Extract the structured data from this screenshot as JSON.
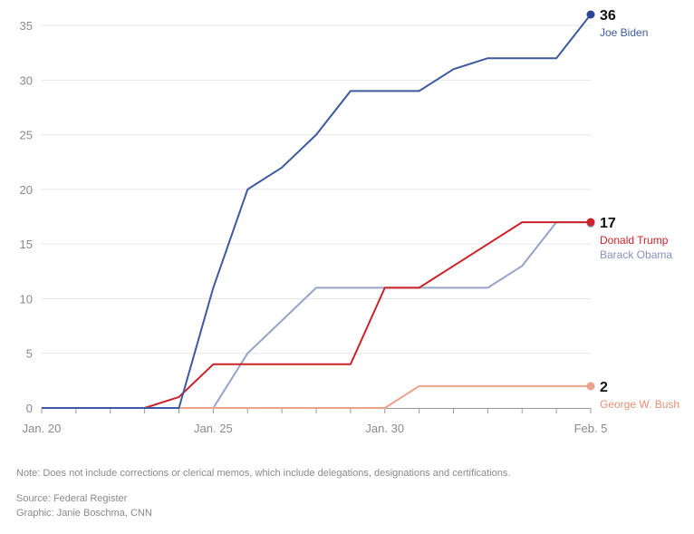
{
  "chart_data": {
    "type": "line",
    "yticks": [
      0,
      5,
      10,
      15,
      20,
      25,
      30,
      35
    ],
    "ylim": [
      0,
      36
    ],
    "xlim": [
      0,
      16
    ],
    "xticks": [
      {
        "x": 0,
        "label": "Jan. 20"
      },
      {
        "x": 5,
        "label": "Jan. 25"
      },
      {
        "x": 10,
        "label": "Jan. 30"
      },
      {
        "x": 16,
        "label": "Feb. 5"
      }
    ],
    "grid": true,
    "series": [
      {
        "name": "Barack Obama",
        "color": "#99a3c9",
        "x": [
          0,
          1,
          2,
          3,
          4,
          5,
          6,
          7,
          8,
          9,
          10,
          11,
          12,
          13,
          14,
          15,
          16
        ],
        "y": [
          0,
          0,
          0,
          0,
          0,
          0,
          5,
          8,
          11,
          11,
          11,
          11,
          11,
          11,
          13,
          17,
          17
        ]
      },
      {
        "name": "George W. Bush",
        "color": "#eba38e",
        "x": [
          0,
          1,
          2,
          3,
          4,
          5,
          6,
          7,
          8,
          9,
          10,
          11,
          12,
          13,
          14,
          15,
          16
        ],
        "y": [
          0,
          0,
          0,
          0,
          0,
          0,
          0,
          0,
          0,
          0,
          0,
          2,
          2,
          2,
          2,
          2,
          2
        ]
      },
      {
        "name": "Donald Trump",
        "color": "#cc2229",
        "x": [
          0,
          1,
          2,
          3,
          4,
          5,
          6,
          7,
          8,
          9,
          10,
          11,
          12,
          13,
          14,
          15,
          16
        ],
        "y": [
          0,
          0,
          0,
          0,
          1,
          4,
          4,
          4,
          4,
          4,
          11,
          11,
          13,
          15,
          17,
          17,
          17
        ]
      },
      {
        "name": "Joe Biden",
        "color": "#3d5a9e",
        "x": [
          0,
          1,
          2,
          3,
          4,
          5,
          6,
          7,
          8,
          9,
          10,
          11,
          12,
          13,
          14,
          15,
          16
        ],
        "y": [
          0,
          0,
          0,
          0,
          0,
          11,
          20,
          22,
          25,
          29,
          29,
          29,
          31,
          32,
          32,
          32,
          36
        ]
      }
    ],
    "end_labels": [
      {
        "value": "36",
        "names": [
          {
            "text": "Joe Biden",
            "color": "#3d5a9e"
          }
        ],
        "y": 36
      },
      {
        "value": "17",
        "names": [
          {
            "text": "Donald Trump",
            "color": "#cc2229"
          },
          {
            "text": "Barack Obama",
            "color": "#8591bd"
          }
        ],
        "y": 17
      },
      {
        "value": "2",
        "names": [
          {
            "text": "George W. Bush",
            "color": "#e58f75"
          }
        ],
        "y": 2
      }
    ],
    "end_dots": [
      {
        "series": "Joe Biden",
        "y": 36,
        "color": "#2b4594"
      },
      {
        "series": "Barack Obama",
        "y": 17,
        "color": "#99a3c9"
      },
      {
        "series": "Donald Trump",
        "y": 17,
        "color": "#cc2229"
      },
      {
        "series": "George W. Bush",
        "y": 2,
        "color": "#eba38e"
      }
    ]
  },
  "footer": {
    "note": "Note: Does not include corrections or clerical memos, which include delegations, designations and certifications.",
    "source": "Source: Federal Register",
    "credit": "Graphic: Janie Boschma, CNN"
  }
}
